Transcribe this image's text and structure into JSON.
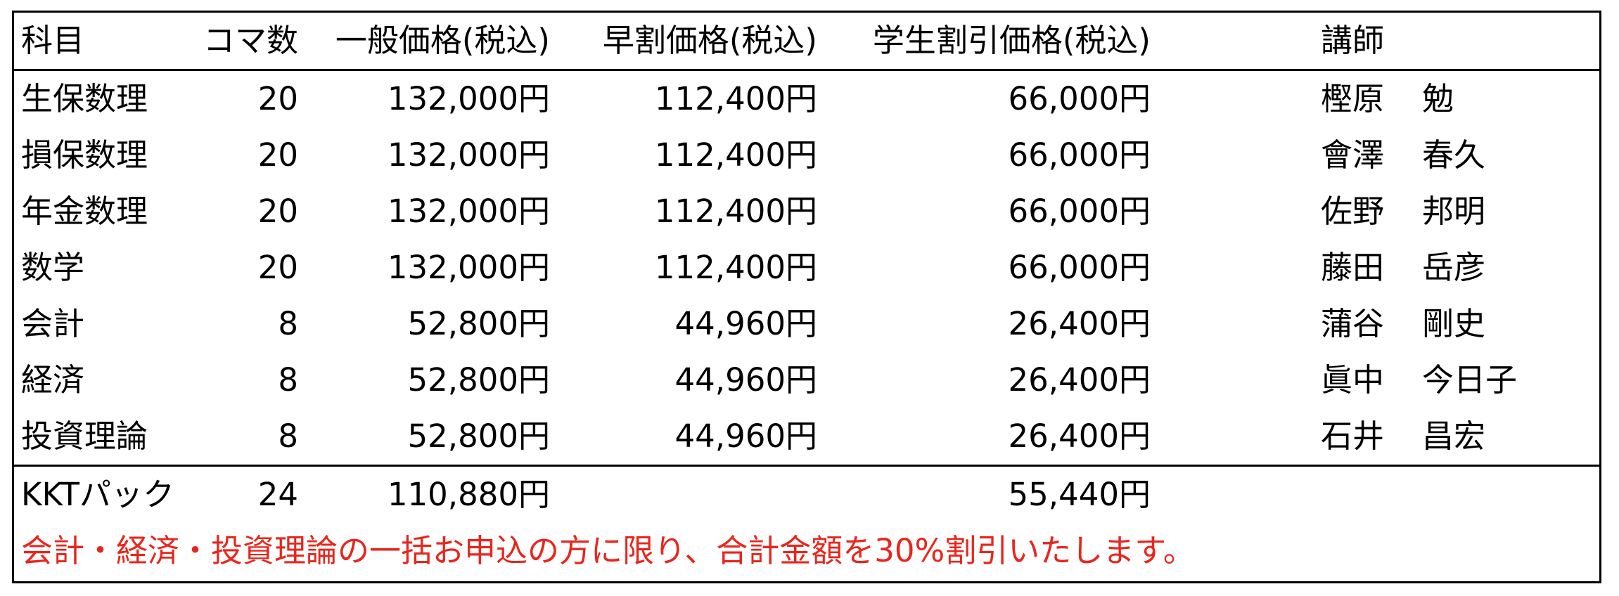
{
  "table": {
    "headers": {
      "subject": "科目",
      "koma": "コマ数",
      "general": "一般価格(税込)",
      "early": "早割価格(税込)",
      "student": "学生割引価格(税込)",
      "teacher": "講師"
    },
    "rows": [
      {
        "subject": "生保数理",
        "koma": "20",
        "general": "132,000円",
        "early": "112,400円",
        "student": "66,000円",
        "teacher_family": "樫原",
        "teacher_given": "勉"
      },
      {
        "subject": "損保数理",
        "koma": "20",
        "general": "132,000円",
        "early": "112,400円",
        "student": "66,000円",
        "teacher_family": "會澤",
        "teacher_given": "春久"
      },
      {
        "subject": "年金数理",
        "koma": "20",
        "general": "132,000円",
        "early": "112,400円",
        "student": "66,000円",
        "teacher_family": "佐野",
        "teacher_given": "邦明"
      },
      {
        "subject": "数学",
        "koma": "20",
        "general": "132,000円",
        "early": "112,400円",
        "student": "66,000円",
        "teacher_family": "藤田",
        "teacher_given": "岳彦"
      },
      {
        "subject": "会計",
        "koma": "8",
        "general": "52,800円",
        "early": "44,960円",
        "student": "26,400円",
        "teacher_family": "蒲谷",
        "teacher_given": "剛史"
      },
      {
        "subject": "経済",
        "koma": "8",
        "general": "52,800円",
        "early": "44,960円",
        "student": "26,400円",
        "teacher_family": "眞中",
        "teacher_given": "今日子"
      },
      {
        "subject": "投資理論",
        "koma": "8",
        "general": "52,800円",
        "early": "44,960円",
        "student": "26,400円",
        "teacher_family": "石井",
        "teacher_given": "昌宏"
      }
    ],
    "pack": {
      "subject": "KKTパック",
      "koma": "24",
      "general": "110,880円",
      "early": "",
      "student": "55,440円"
    },
    "note": "会計・経済・投資理論の一括お申込の方に限り、合計金額を30%割引いたします。"
  },
  "colors": {
    "text": "#000000",
    "border": "#000000",
    "note": "#e8261c"
  }
}
